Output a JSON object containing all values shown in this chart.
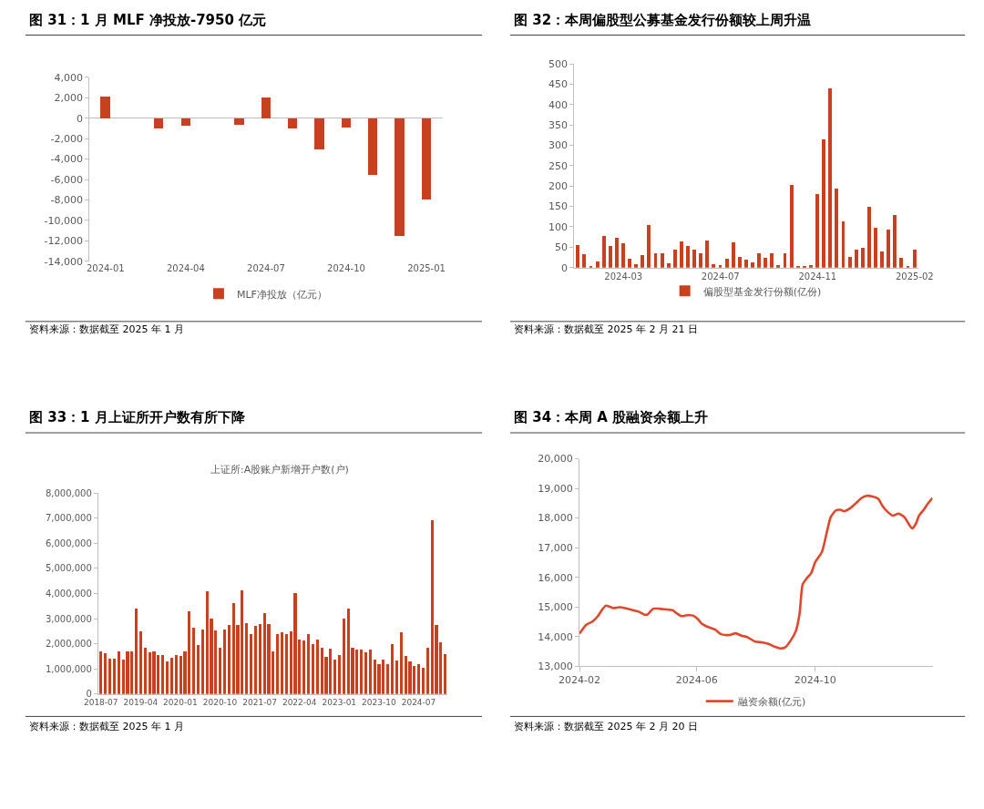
{
  "chart_data": [
    {
      "type": "bar",
      "title": "图 31：1 月 MLF 净投放-7950 亿元",
      "annotations": [
        "资料来源：数据截至 2025 年 1 月"
      ],
      "categories": [
        "2024-01",
        null,
        null,
        "2024-04",
        null,
        null,
        "2024-07",
        null,
        null,
        "2024-10",
        null,
        null,
        "2025-01"
      ],
      "series": [
        {
          "name": "MLF净投放（亿元）",
          "color": "#c8401e",
          "values": [
            2100,
            0,
            -1000,
            -700,
            0,
            -600,
            2000,
            -1000,
            -3000,
            -900,
            -5500,
            -11500,
            -7950
          ]
        }
      ],
      "ylim": [
        -14000,
        4000
      ],
      "yticks": [
        {
          "value": -14000,
          "label": "-14,000"
        },
        {
          "value": -12000,
          "label": "-12,000"
        },
        {
          "value": -10000,
          "label": "-10,000"
        },
        {
          "value": -8000,
          "label": "-8,000"
        },
        {
          "value": -6000,
          "label": "-6,000"
        },
        {
          "value": -4000,
          "label": "-4,000"
        },
        {
          "value": -2000,
          "label": "-2,000"
        },
        0,
        {
          "value": 2000,
          "label": "2,000"
        },
        {
          "value": 4000,
          "label": "4,000"
        }
      ],
      "legend": "bottom"
    },
    {
      "type": "bar",
      "title": "图 32：本周偏股型公募基金发行份额较上周升温",
      "annotations": [
        "资料来源：数据截至 2025 年 2 月 21 日"
      ],
      "categories": [
        null,
        null,
        null,
        null,
        null,
        null,
        null,
        "2024-03",
        null,
        null,
        null,
        null,
        null,
        null,
        null,
        null,
        null,
        null,
        null,
        null,
        null,
        null,
        "2024-07",
        null,
        null,
        null,
        null,
        null,
        null,
        null,
        null,
        null,
        null,
        null,
        null,
        null,
        null,
        "2024-11",
        null,
        null,
        null,
        null,
        null,
        null,
        null,
        null,
        null,
        null,
        null,
        null,
        null,
        null,
        "2025-02"
      ],
      "series": [
        {
          "name": "偏股型基金发行份额(亿份)",
          "color": "#c8401e",
          "values": [
            55,
            32,
            4,
            16,
            78,
            53,
            73,
            60,
            21,
            9,
            30,
            104,
            34,
            36,
            11,
            44,
            65,
            53,
            44,
            36,
            67,
            9,
            7,
            22,
            61,
            25,
            19,
            13,
            35,
            23,
            35,
            6,
            35,
            203,
            4,
            4,
            6,
            180,
            315,
            440,
            194,
            113,
            26,
            44,
            49,
            150,
            98,
            40,
            94,
            128,
            23,
            3,
            44
          ]
        }
      ],
      "ylim": [
        0,
        500
      ],
      "yticks": [
        0,
        50,
        100,
        150,
        200,
        250,
        300,
        350,
        400,
        450,
        500
      ],
      "legend": "bottom"
    },
    {
      "type": "bar",
      "title": "图 33：1 月上证所开户数有所下降",
      "subtitle": "上证所:A股账户新增开户数(户)",
      "annotations": [
        "资料来源：数据截至 2025 年 1 月"
      ],
      "categories": [
        "2018-07",
        null,
        null,
        null,
        null,
        null,
        null,
        null,
        null,
        "2019-04",
        null,
        null,
        null,
        null,
        null,
        null,
        null,
        null,
        "2020-01",
        null,
        null,
        null,
        null,
        null,
        null,
        null,
        null,
        "2020-10",
        null,
        null,
        null,
        null,
        null,
        null,
        null,
        null,
        "2021-07",
        null,
        null,
        null,
        null,
        null,
        null,
        null,
        null,
        "2022-04",
        null,
        null,
        null,
        null,
        null,
        null,
        null,
        null,
        "2023-01",
        null,
        null,
        null,
        null,
        null,
        null,
        null,
        null,
        "2023-10",
        null,
        null,
        null,
        null,
        null,
        null,
        null,
        null,
        "2024-07",
        null,
        null,
        null,
        null,
        null,
        null
      ],
      "series": [
        {
          "color": "#c8401e",
          "values": [
            1700000,
            1630000,
            1400000,
            1400000,
            1680000,
            1380000,
            1680000,
            1680000,
            3410000,
            2490000,
            1840000,
            1660000,
            1710000,
            1560000,
            1560000,
            1280000,
            1430000,
            1560000,
            1530000,
            1690000,
            3280000,
            2630000,
            1960000,
            2560000,
            4080000,
            2990000,
            2540000,
            1840000,
            2580000,
            2740000,
            3630000,
            2740000,
            4130000,
            2810000,
            2400000,
            2710000,
            2780000,
            3230000,
            2790000,
            1700000,
            2380000,
            2440000,
            2380000,
            2480000,
            4010000,
            2160000,
            2130000,
            2400000,
            2000000,
            2180000,
            1850000,
            1490000,
            1800000,
            1360000,
            1550000,
            2990000,
            3380000,
            1850000,
            1750000,
            1780000,
            1650000,
            1780000,
            1380000,
            1200000,
            1380000,
            1190000,
            2000000,
            1340000,
            2440000,
            1500000,
            1310000,
            1100000,
            1180000,
            1030000,
            1850000,
            6900000,
            2750000,
            2040000,
            1600000
          ]
        }
      ],
      "ylim": [
        0,
        8000000
      ],
      "yticks": [
        0,
        {
          "value": 1000000,
          "label": "1,000,000"
        },
        {
          "value": 2000000,
          "label": "2,000,000"
        },
        {
          "value": 3000000,
          "label": "3,000,000"
        },
        {
          "value": 4000000,
          "label": "4,000,000"
        },
        {
          "value": 5000000,
          "label": "5,000,000"
        },
        {
          "value": 6000000,
          "label": "6,000,000"
        },
        {
          "value": 7000000,
          "label": "7,000,000"
        },
        {
          "value": 8000000,
          "label": "8,000,000"
        }
      ]
    },
    {
      "type": "line",
      "title": "图 34：本周 A 股融资余额上升",
      "annotations": [
        "资料来源：数据截至 2025 年 2 月 20 日"
      ],
      "x": [
        "2024-02-01",
        "2024-02-08",
        "2024-02-14",
        "2024-02-20",
        "2024-02-24",
        "2024-02-28",
        "2024-03-03",
        "2024-03-07",
        "2024-03-13",
        "2024-03-19",
        "2024-03-27",
        "2024-04-02",
        "2024-04-08",
        "2024-04-11",
        "2024-04-17",
        "2024-04-23",
        "2024-04-29",
        "2024-05-07",
        "2024-05-11",
        "2024-05-16",
        "2024-05-22",
        "2024-05-28",
        "2024-06-02",
        "2024-06-06",
        "2024-06-12",
        "2024-06-20",
        "2024-06-26",
        "2024-07-04",
        "2024-07-11",
        "2024-07-17",
        "2024-07-23",
        "2024-07-31",
        "2024-08-08",
        "2024-08-14",
        "2024-08-20",
        "2024-08-26",
        "2024-08-31",
        "2024-09-06",
        "2024-09-11",
        "2024-09-15",
        "2024-09-18",
        "2024-09-22",
        "2024-09-27",
        "2024-10-01",
        "2024-10-08",
        "2024-10-13",
        "2024-10-17",
        "2024-10-22",
        "2024-10-27",
        "2024-10-31",
        "2024-11-06",
        "2024-11-12",
        "2024-11-18",
        "2024-11-23",
        "2024-11-29",
        "2024-12-05",
        "2024-12-09",
        "2024-12-14",
        "2024-12-20",
        "2024-12-26",
        "2025-01-01",
        "2025-01-06",
        "2025-01-09",
        "2025-01-13",
        "2025-01-16",
        "2025-01-21",
        "2025-01-25",
        "2025-01-30"
      ],
      "series": [
        {
          "name": "融资余额(亿元)",
          "color": "#e0482c",
          "values": [
            14100,
            14400,
            14500,
            14690,
            14890,
            15040,
            15010,
            14960,
            14990,
            14960,
            14890,
            14840,
            14740,
            14740,
            14940,
            14940,
            14920,
            14890,
            14790,
            14690,
            14720,
            14710,
            14590,
            14440,
            14330,
            14230,
            14080,
            14050,
            14110,
            14030,
            13980,
            13830,
            13800,
            13750,
            13660,
            13600,
            13630,
            13880,
            14180,
            14790,
            15750,
            15950,
            16150,
            16510,
            16860,
            17520,
            18030,
            18250,
            18280,
            18230,
            18330,
            18500,
            18680,
            18750,
            18730,
            18650,
            18430,
            18230,
            18080,
            18150,
            18030,
            17770,
            17650,
            17820,
            18080,
            18280,
            18480,
            18680
          ]
        }
      ],
      "xlim": [
        "2024-02-01",
        "2025-01-30"
      ],
      "xticks": [
        {
          "value": "2024-02-01",
          "label": "2024-02"
        },
        {
          "value": "2024-06-01",
          "label": "2024-06"
        },
        {
          "value": "2024-10-01",
          "label": "2024-10"
        }
      ],
      "ylim": [
        13000,
        20000
      ],
      "yticks": [
        {
          "value": 13000,
          "label": "13,000"
        },
        {
          "value": 14000,
          "label": "14,000"
        },
        {
          "value": 15000,
          "label": "15,000"
        },
        {
          "value": 16000,
          "label": "16,000"
        },
        {
          "value": 17000,
          "label": "17,000"
        },
        {
          "value": 18000,
          "label": "18,000"
        },
        {
          "value": 19000,
          "label": "19,000"
        },
        {
          "value": 20000,
          "label": "20,000"
        }
      ],
      "legend": "bottom"
    }
  ]
}
